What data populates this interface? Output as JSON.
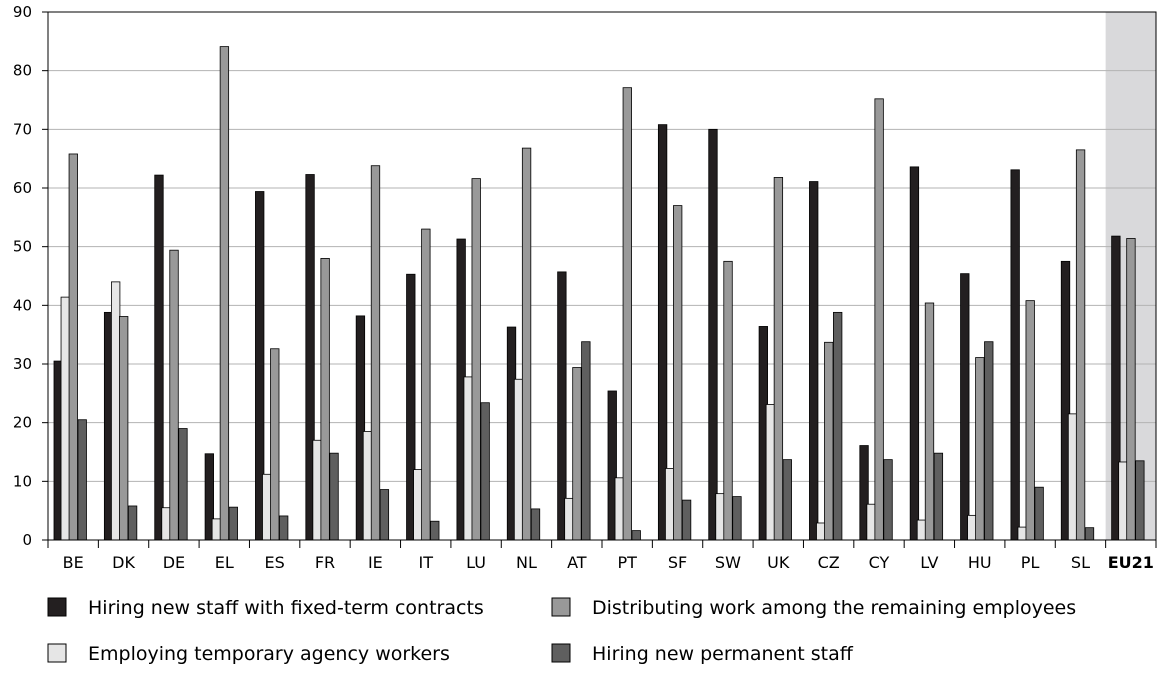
{
  "chart_data": {
    "type": "bar",
    "title": "",
    "xlabel": "",
    "ylabel": "",
    "ylim": [
      0,
      90
    ],
    "yticks": [
      0,
      10,
      20,
      30,
      40,
      50,
      60,
      70,
      80,
      90
    ],
    "grid": true,
    "legend_position": "bottom",
    "highlighted_category": "EU21",
    "categories": [
      "BE",
      "DK",
      "DE",
      "EL",
      "ES",
      "FR",
      "IE",
      "IT",
      "LU",
      "NL",
      "AT",
      "PT",
      "SF",
      "SW",
      "UK",
      "CZ",
      "CY",
      "LV",
      "HU",
      "PL",
      "SL",
      "EU21"
    ],
    "series": [
      {
        "name": "Hiring new staff with fixed-term contracts",
        "color": "#231f20",
        "values": [
          30.5,
          38.8,
          62.2,
          14.7,
          59.4,
          62.3,
          38.2,
          45.3,
          51.3,
          36.3,
          45.7,
          25.4,
          70.8,
          70.0,
          36.4,
          61.1,
          16.1,
          63.6,
          45.4,
          63.1,
          47.5,
          51.8
        ]
      },
      {
        "name": "Employing temporary agency workers",
        "color": "#e6e6e6",
        "values": [
          41.4,
          44.0,
          5.5,
          3.6,
          11.2,
          17.0,
          18.5,
          12.0,
          27.8,
          27.4,
          7.1,
          10.6,
          12.2,
          7.9,
          23.1,
          2.9,
          6.1,
          3.4,
          4.2,
          2.2,
          21.5,
          13.3
        ]
      },
      {
        "name": "Distributing work among the remaining employees",
        "color": "#999999",
        "values": [
          65.8,
          38.1,
          49.4,
          84.1,
          32.6,
          48.0,
          63.8,
          53.0,
          61.6,
          66.8,
          29.4,
          77.1,
          57.0,
          47.5,
          61.8,
          33.7,
          75.2,
          40.4,
          31.1,
          40.8,
          66.5,
          51.4
        ]
      },
      {
        "name": "Hiring new permanent staff",
        "color": "#5f5f5f",
        "values": [
          20.5,
          5.8,
          19.0,
          5.6,
          4.1,
          14.8,
          8.6,
          3.2,
          23.4,
          5.3,
          33.8,
          1.6,
          6.8,
          7.4,
          13.7,
          38.8,
          13.7,
          14.8,
          33.8,
          9.0,
          2.1,
          13.5
        ]
      }
    ]
  }
}
